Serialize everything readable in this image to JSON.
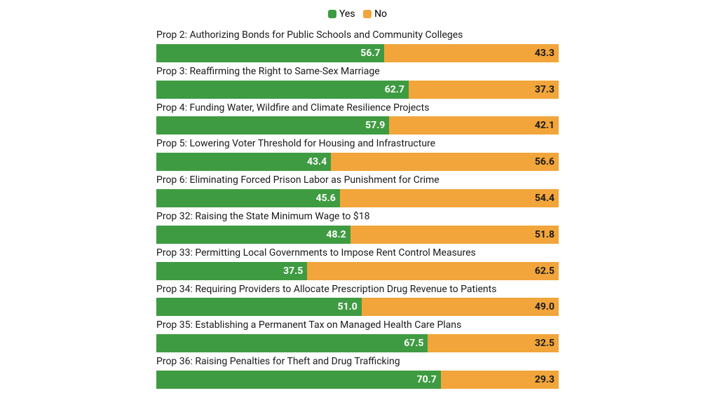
{
  "chart": {
    "type": "stacked-bar-horizontal",
    "legend": {
      "yes": {
        "label": "Yes",
        "color": "#3f9b42"
      },
      "no": {
        "label": "No",
        "color": "#f2a53a"
      }
    },
    "value_text_color_yes": "#ffffff",
    "value_text_color_no": "#1a1a1a",
    "title_fontsize": 14,
    "value_fontsize": 14,
    "background": "#ffffff",
    "rows": [
      {
        "title": "Prop 2: Authorizing Bonds for Public Schools and Community Colleges",
        "yes": 56.7,
        "no": 43.3
      },
      {
        "title": "Prop 3: Reaffirming the Right to Same-Sex Marriage",
        "yes": 62.7,
        "no": 37.3
      },
      {
        "title": "Prop 4: Funding Water, Wildfire and Climate Resilience Projects",
        "yes": 57.9,
        "no": 42.1
      },
      {
        "title": "Prop 5: Lowering Voter Threshold for Housing and Infrastructure",
        "yes": 43.4,
        "no": 56.6
      },
      {
        "title": "Prop 6: Eliminating Forced Prison Labor as Punishment for Crime",
        "yes": 45.6,
        "no": 54.4
      },
      {
        "title": "Prop 32: Raising the State Minimum Wage to $18",
        "yes": 48.2,
        "no": 51.8
      },
      {
        "title": "Prop 33: Permitting Local Governments to Impose Rent Control Measures",
        "yes": 37.5,
        "no": 62.5
      },
      {
        "title": "Prop 34: Requiring Providers to Allocate Prescription Drug Revenue to Patients",
        "yes": 51.0,
        "no": 49.0
      },
      {
        "title": "Prop 35: Establishing a Permanent Tax on Managed Health Care Plans",
        "yes": 67.5,
        "no": 32.5
      },
      {
        "title": "Prop 36: Raising Penalties for Theft and Drug Trafficking",
        "yes": 70.7,
        "no": 29.3
      }
    ]
  }
}
